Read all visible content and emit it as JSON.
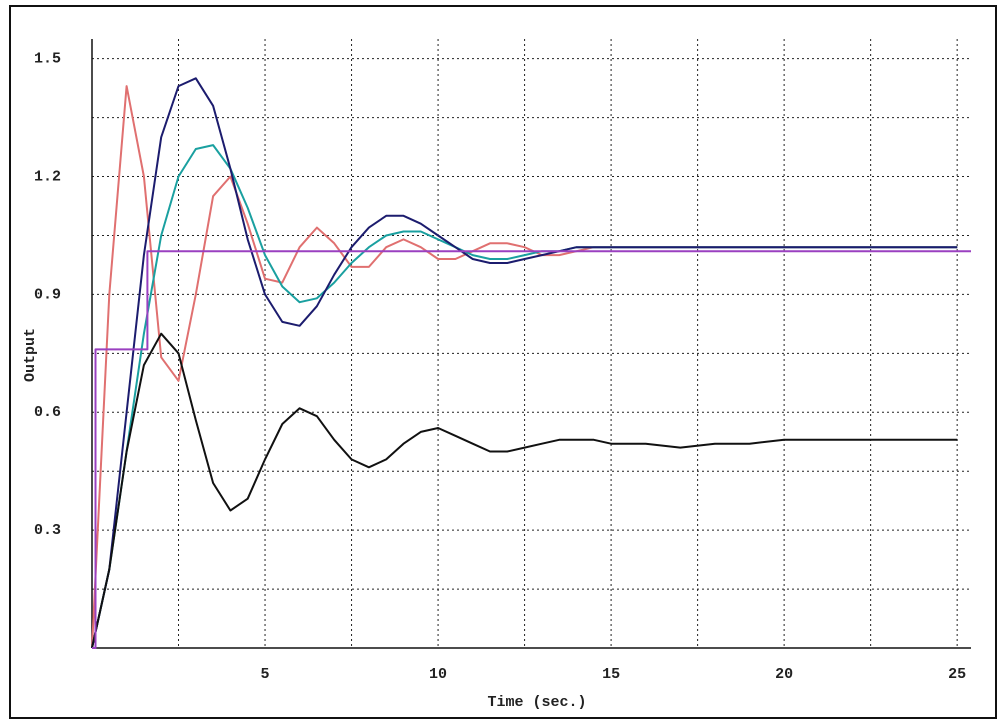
{
  "chart_data": {
    "type": "line",
    "xlabel": "Time (sec.)",
    "ylabel": "Output",
    "xlim": [
      0,
      25.4
    ],
    "ylim": [
      0,
      1.55
    ],
    "xticks": [
      5,
      10,
      15,
      20,
      25
    ],
    "yticks": [
      0.3,
      0.6,
      0.9,
      1.2,
      1.5
    ],
    "xgrid": [
      0,
      2.5,
      5,
      7.5,
      10,
      12.5,
      15,
      17.5,
      20,
      22.5,
      25
    ],
    "ygrid": [
      0.15,
      0.3,
      0.45,
      0.6,
      0.75,
      0.9,
      1.05,
      1.2,
      1.35,
      1.5
    ],
    "grid": true,
    "x": [
      0,
      0.5,
      1,
      1.5,
      2,
      2.5,
      3,
      3.5,
      4,
      4.5,
      5,
      5.5,
      6,
      6.5,
      7,
      7.5,
      8,
      8.5,
      9,
      9.5,
      10,
      10.5,
      11,
      11.5,
      12,
      12.5,
      13,
      13.5,
      14,
      14.5,
      15,
      16,
      17,
      18,
      19,
      20,
      21,
      22,
      23,
      24,
      25
    ],
    "series": [
      {
        "color": "#e07070",
        "values": [
          0,
          0.9,
          1.43,
          1.2,
          0.74,
          0.68,
          0.9,
          1.15,
          1.2,
          1.08,
          0.94,
          0.93,
          1.02,
          1.07,
          1.03,
          0.97,
          0.97,
          1.02,
          1.04,
          1.02,
          0.99,
          0.99,
          1.01,
          1.03,
          1.03,
          1.02,
          1.0,
          1.0,
          1.01,
          1.02,
          1.02,
          1.02,
          1.02,
          1.02,
          1.02,
          1.02,
          1.02,
          1.02,
          1.02,
          1.02,
          1.02
        ]
      },
      {
        "color": "#1aa0a0",
        "values": [
          0,
          0.2,
          0.5,
          0.8,
          1.05,
          1.2,
          1.27,
          1.28,
          1.22,
          1.12,
          1.0,
          0.92,
          0.88,
          0.89,
          0.93,
          0.98,
          1.02,
          1.05,
          1.06,
          1.06,
          1.04,
          1.02,
          1.0,
          0.99,
          0.99,
          1.0,
          1.01,
          1.01,
          1.02,
          1.02,
          1.02,
          1.02,
          1.02,
          1.02,
          1.02,
          1.02,
          1.02,
          1.02,
          1.02,
          1.02,
          1.02
        ]
      },
      {
        "color": "#1c1c6e",
        "values": [
          0,
          0.2,
          0.6,
          1.0,
          1.3,
          1.43,
          1.45,
          1.38,
          1.22,
          1.04,
          0.9,
          0.83,
          0.82,
          0.87,
          0.95,
          1.02,
          1.07,
          1.1,
          1.1,
          1.08,
          1.05,
          1.02,
          0.99,
          0.98,
          0.98,
          0.99,
          1.0,
          1.01,
          1.02,
          1.02,
          1.02,
          1.02,
          1.02,
          1.02,
          1.02,
          1.02,
          1.02,
          1.02,
          1.02,
          1.02,
          1.02
        ]
      },
      {
        "color": "#111111",
        "values": [
          0,
          0.2,
          0.5,
          0.72,
          0.8,
          0.75,
          0.58,
          0.42,
          0.35,
          0.38,
          0.48,
          0.57,
          0.61,
          0.59,
          0.53,
          0.48,
          0.46,
          0.48,
          0.52,
          0.55,
          0.56,
          0.54,
          0.52,
          0.5,
          0.5,
          0.51,
          0.52,
          0.53,
          0.53,
          0.53,
          0.52,
          0.52,
          0.51,
          0.52,
          0.52,
          0.53,
          0.53,
          0.53,
          0.53,
          0.53,
          0.53
        ]
      },
      {
        "color": "#9a40c0",
        "x": [
          0,
          0.1,
          0.1,
          1.6,
          1.6,
          25.4
        ],
        "values": [
          0,
          0,
          0.76,
          0.76,
          1.01,
          1.01
        ]
      }
    ]
  }
}
